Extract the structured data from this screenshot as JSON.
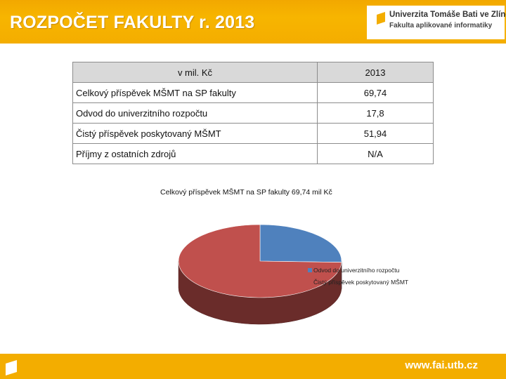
{
  "slide": {
    "title": "ROZPOČET FAKULTY r. 2013",
    "accent_color": "#f5b000"
  },
  "logo": {
    "line1": "Univerzita Tomáše Bati ve Zlíně",
    "line2": "Fakulta aplikované informatiky",
    "icon": "utb-logo-icon"
  },
  "table": {
    "headers": [
      "v mil. Kč",
      "2013"
    ],
    "rows": [
      {
        "label": "Celkový příspěvek MŠMT na SP fakulty",
        "value": "69,74"
      },
      {
        "label": "Odvod do univerzitního rozpočtu",
        "value": "17,8"
      },
      {
        "label": "Čistý příspěvek poskytovaný MŠMT",
        "value": "51,94"
      },
      {
        "label": "Příjmy z ostatních zdrojů",
        "value": "N/A"
      }
    ]
  },
  "chart_data": {
    "type": "pie",
    "title": "Celkový příspěvek MŠMT na SP fakulty  69,74 mil Kč",
    "slices": [
      {
        "name": "Odvod do univerzitního rozpočtu",
        "value": 17.8,
        "color": "#4f81bd"
      },
      {
        "name": "Čistý příspěvek poskytovaný MŠMT",
        "value": 51.94,
        "color": "#c0504d"
      }
    ],
    "legend_position": "right"
  },
  "footer": {
    "url": "www.fai.utb.cz",
    "icon": "utb-logo-icon"
  }
}
